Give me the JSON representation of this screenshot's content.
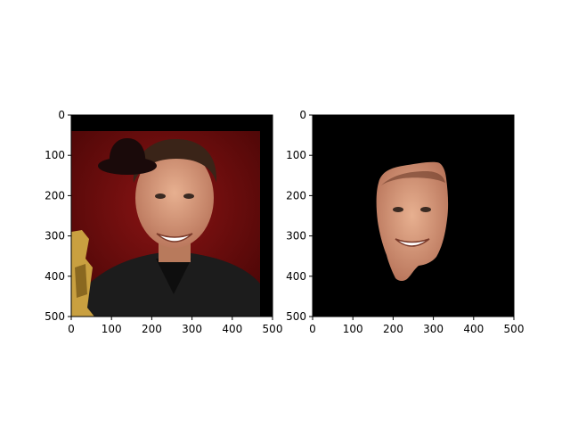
{
  "chart_data": [
    {
      "type": "image",
      "title": "",
      "xlabel": "",
      "ylabel": "",
      "xlim": [
        0,
        500
      ],
      "ylim": [
        500,
        0
      ],
      "x_ticks": [
        0,
        100,
        200,
        300,
        400,
        500
      ],
      "y_ticks": [
        0,
        100,
        200,
        300,
        400,
        500
      ],
      "x_tick_labels": [
        "0",
        "100",
        "200",
        "300",
        "400",
        "500"
      ],
      "y_tick_labels": [
        "0",
        "100",
        "200",
        "300",
        "400",
        "500"
      ],
      "content": "photo with red backdrop, black border strip at top and right, and drawn black hat overlay",
      "hat_center": [
        140,
        100
      ]
    },
    {
      "type": "image",
      "title": "",
      "xlabel": "",
      "ylabel": "",
      "xlim": [
        0,
        500
      ],
      "ylim": [
        500,
        0
      ],
      "x_ticks": [
        0,
        100,
        200,
        300,
        400,
        500
      ],
      "y_ticks": [
        0,
        100,
        200,
        300,
        400,
        500
      ],
      "x_tick_labels": [
        "0",
        "100",
        "200",
        "300",
        "400",
        "500"
      ],
      "y_tick_labels": [
        "0",
        "100",
        "200",
        "300",
        "400",
        "500"
      ],
      "content": "face mask cut-out on black background"
    }
  ],
  "colors": {
    "backdrop_red": "#6e0c0c",
    "border_black": "#000000",
    "skin": "#d89a7a",
    "hair": "#3a2418",
    "jacket": "#1c1c1c",
    "hat": "#1a0a0a",
    "trophy": "#c9a040"
  }
}
